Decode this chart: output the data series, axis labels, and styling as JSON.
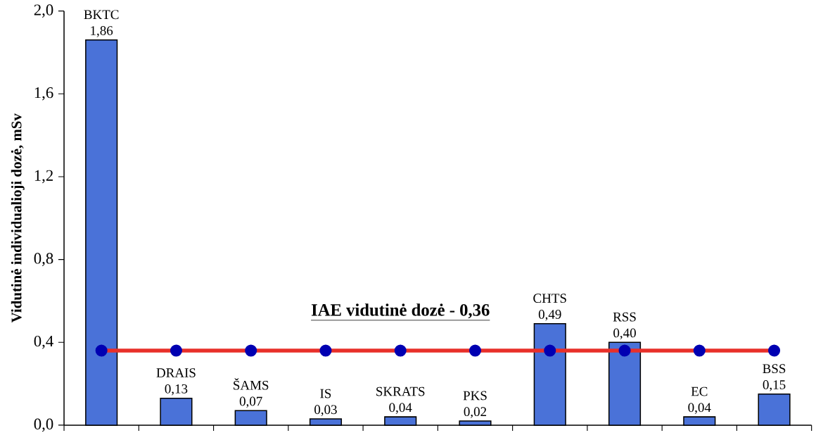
{
  "chart_data": {
    "type": "bar",
    "ylabel": "Vidutinė individualioji dozė, mSv",
    "categories": [
      "BKTC",
      "DRAIS",
      "ŠAMS",
      "IS",
      "SKRATS",
      "PKS",
      "CHTS",
      "RSS",
      "EC",
      "BSS"
    ],
    "ylim": [
      0,
      2.0
    ],
    "yticks": [
      {
        "value": 0,
        "label": "0,0"
      },
      {
        "value": 0.4,
        "label": "0,4"
      },
      {
        "value": 0.8,
        "label": "0,8"
      },
      {
        "value": 1.2,
        "label": "1,2"
      },
      {
        "value": 1.6,
        "label": "1,6"
      },
      {
        "value": 2.0,
        "label": "2,0"
      }
    ],
    "tick_labels": "y",
    "series": [
      {
        "color": "#4a72d8",
        "values": [
          1.86,
          0.13,
          0.07,
          0.03,
          0.04,
          0.02,
          0.49,
          0.4,
          0.04,
          0.15
        ],
        "value_labels": [
          "1,86",
          "0,13",
          "0,07",
          "0,03",
          "0,04",
          "0,02",
          "0,49",
          "0,40",
          "0,04",
          "0,15"
        ]
      },
      {
        "type": "line",
        "name": "IAE vidutinė dozė - 0,36",
        "color": "#e8302a",
        "marker": "circle",
        "values": [
          0.36,
          0.36,
          0.36,
          0.36,
          0.36,
          0.36,
          0.36,
          0.36,
          0.36,
          0.36
        ]
      }
    ]
  }
}
